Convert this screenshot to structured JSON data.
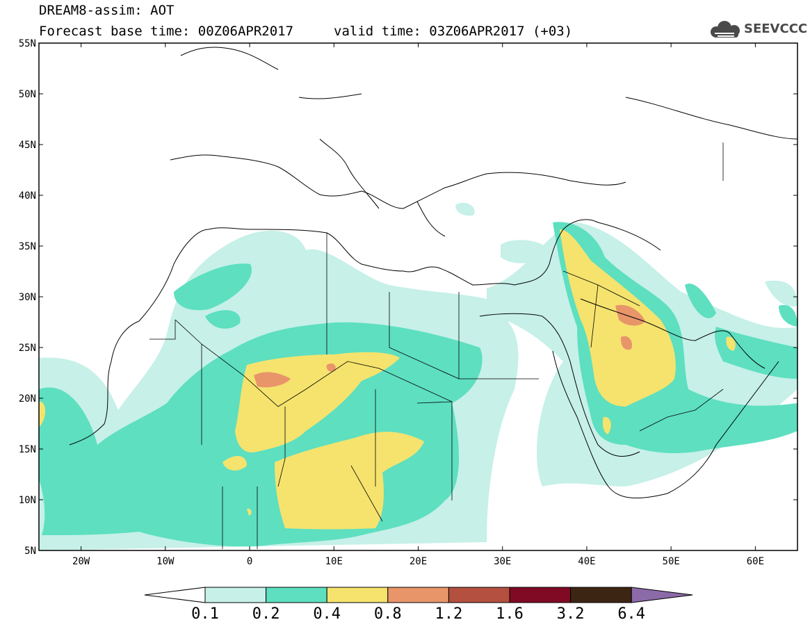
{
  "title_line1": "DREAM8-assim: AOT",
  "title_line2": "Forecast base time: 00Z06APR2017",
  "valid_time": "valid time: 03Z06APR2017 (+03)",
  "logo": {
    "text": "SEEVCCC",
    "icon": "cloud-icon"
  },
  "lat_labels": [
    "55N",
    "50N",
    "45N",
    "40N",
    "35N",
    "30N",
    "25N",
    "20N",
    "15N",
    "10N",
    "5N"
  ],
  "lon_labels": [
    "20W",
    "10W",
    "0",
    "10E",
    "20E",
    "30E",
    "40E",
    "50E",
    "60E"
  ],
  "colorbar": {
    "labels": [
      "0.1",
      "0.2",
      "0.4",
      "0.8",
      "1.2",
      "1.6",
      "3.2",
      "6.4"
    ],
    "colors": [
      "#ffffff",
      "#c6f0e8",
      "#5ddfc0",
      "#f5e36e",
      "#e8956a",
      "#b4503f",
      "#800a24",
      "#3d2514",
      "#8c6aa8"
    ]
  },
  "extent": {
    "lon_min": -25,
    "lon_max": 65,
    "lat_min": 5,
    "lat_max": 55
  }
}
